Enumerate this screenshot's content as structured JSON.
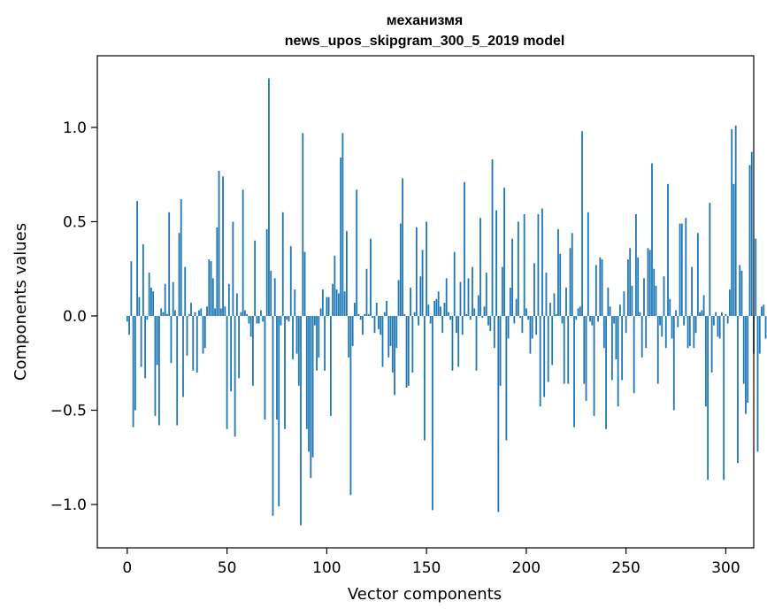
{
  "chart_data": {
    "type": "bar",
    "title_line1": "механизмя",
    "title_line2": "news_upos_skipgram_300_5_2019 model",
    "xlabel": "Vector components",
    "ylabel": "Components values",
    "xlim": [
      -15,
      314
    ],
    "ylim": [
      -1.23,
      1.38
    ],
    "xticks": [
      0,
      50,
      100,
      150,
      200,
      250,
      300
    ],
    "xtick_labels": [
      "0",
      "50",
      "100",
      "150",
      "200",
      "250",
      "300"
    ],
    "yticks": [
      -1.0,
      -0.5,
      0.0,
      0.5,
      1.0
    ],
    "ytick_labels": [
      "−1.0",
      "−0.5",
      "0.0",
      "0.5",
      "1.0"
    ],
    "grid": false,
    "bar_color": "#1f77b4",
    "values": [
      -0.03,
      -0.1,
      0.29,
      -0.59,
      -0.5,
      0.61,
      0.1,
      -0.27,
      0.38,
      -0.33,
      -0.02,
      0.23,
      0.15,
      0.13,
      -0.53,
      -0.26,
      -0.58,
      0.04,
      0.02,
      0.17,
      0.01,
      0.55,
      -0.25,
      0.18,
      0.03,
      -0.58,
      0.44,
      0.62,
      -0.43,
      0.26,
      -0.21,
      0.01,
      0.07,
      -0.29,
      0.02,
      -0.3,
      0.03,
      0.04,
      -0.2,
      -0.17,
      0.05,
      0.3,
      0.29,
      0.2,
      0.04,
      0.47,
      0.77,
      0.04,
      0.74,
      0.05,
      -0.6,
      0.17,
      -0.4,
      0.5,
      -0.64,
      0.12,
      -0.33,
      0.02,
      0.67,
      0.03,
      0.01,
      -0.04,
      -0.11,
      -0.37,
      0.4,
      -0.04,
      -0.04,
      0.03,
      -0.03,
      -0.55,
      0.46,
      1.26,
      0.24,
      -1.06,
      0.2,
      -0.55,
      -1.01,
      -0.05,
      0.55,
      -0.6,
      -0.02,
      -0.03,
      0.37,
      -0.23,
      0.14,
      -0.2,
      -0.37,
      -1.11,
      0.97,
      0.34,
      -0.6,
      -0.72,
      -0.86,
      -0.75,
      -0.05,
      -0.29,
      -0.22,
      0.04,
      0.14,
      -0.29,
      0.1,
      0.1,
      -0.53,
      0.17,
      0.32,
      0.14,
      0.12,
      0.84,
      0.97,
      0.13,
      0.45,
      -0.22,
      -0.95,
      -0.16,
      0.07,
      0.67,
      0.01,
      -0.02,
      -0.1,
      0.01,
      0.25,
      0.01,
      0.41,
      -0.01,
      -0.09,
      0.07,
      -0.07,
      -0.1,
      -0.27,
      0.02,
      0.08,
      -0.22,
      -0.16,
      -0.3,
      -0.42,
      -0.17,
      0.19,
      0.49,
      0.73,
      0.01,
      -0.38,
      -0.37,
      0.15,
      -0.3,
      0.02,
      0.47,
      -0.05,
      0.21,
      0.35,
      -0.66,
      0.5,
      0.06,
      -0.04,
      -1.03,
      0.08,
      0.09,
      0.13,
      0.05,
      -0.09,
      0.07,
      0.2,
      0.02,
      -0.02,
      -0.29,
      0.34,
      -0.09,
      -0.27,
      0.18,
      -0.1,
      0.71,
      0.01,
      0.2,
      -0.02,
      0.26,
      0.04,
      -0.29,
      0.11,
      0.52,
      -0.01,
      0.05,
      0.23,
      -0.05,
      -0.08,
      0.83,
      -0.17,
      0.56,
      -1.04,
      -0.37,
      0.26,
      0.68,
      -0.66,
      -0.12,
      0.15,
      0.41,
      -0.04,
      0.09,
      0.5,
      -0.01,
      -0.09,
      0.54,
      0.04,
      -0.02,
      -0.2,
      -0.12,
      0.28,
      -0.1,
      0.54,
      -0.48,
      0.57,
      -0.43,
      0.23,
      -0.35,
      0.07,
      -0.26,
      0.12,
      0.01,
      0.46,
      0.33,
      -0.04,
      -0.36,
      0.15,
      -0.36,
      0.36,
      0.44,
      -0.59,
      -0.02,
      0.04,
      0.05,
      0.98,
      -0.36,
      -0.45,
      0.55,
      -0.03,
      -0.05,
      -0.53,
      0.27,
      -0.03,
      0.31,
      0.3,
      -0.17,
      -0.6,
      0.15,
      0.05,
      -0.34,
      -0.04,
      -0.23,
      -0.48,
      0.06,
      -0.34,
      0.13,
      -0.09,
      0.3,
      0.36,
      0.16,
      -0.41,
      0.54,
      0.31,
      0.02,
      -0.22,
      0.2,
      -0.17,
      0.36,
      0.35,
      0.81,
      0.25,
      0.16,
      -0.36,
      -0.05,
      -0.11,
      0.21,
      -0.17,
      0.7,
      0.09,
      -0.12,
      -0.5,
      0.03,
      -0.06,
      0.49,
      0.49,
      -0.05,
      0.52,
      -0.17,
      -0.16,
      0.26,
      -0.17,
      -0.09,
      0.44,
      0.02,
      0.03,
      0.11,
      -0.48,
      -0.87,
      0.6,
      -0.3,
      -0.05,
      0.02,
      -0.11,
      -0.12,
      0.02,
      -0.87,
      0.01,
      -0.04,
      0.14,
      0.99,
      0.7,
      1.01,
      -0.78,
      0.27,
      0.24,
      -0.36,
      -0.52,
      -0.46,
      0.8,
      0.87,
      -0.2,
      0.41,
      -0.72,
      -0.2,
      0.05,
      0.06,
      -0.12
    ]
  }
}
